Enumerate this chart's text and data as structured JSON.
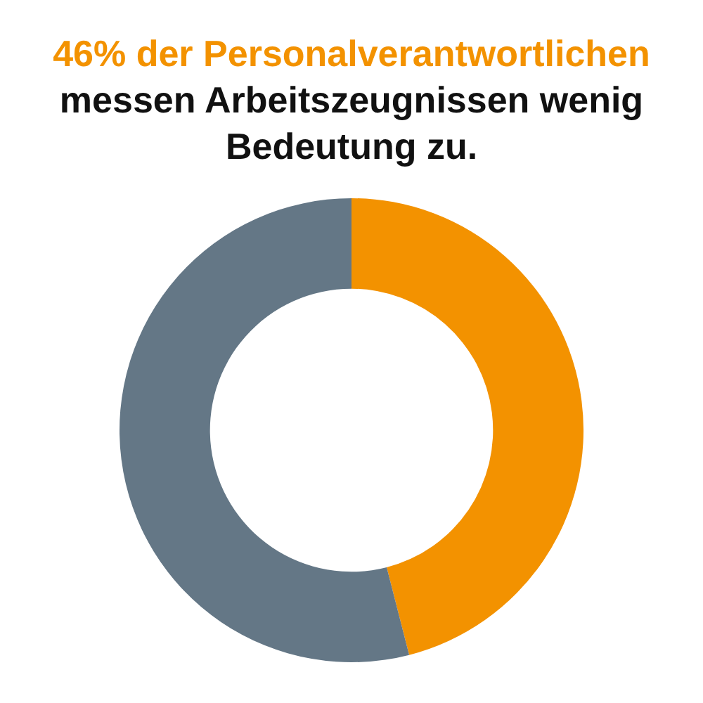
{
  "chart_data": {
    "type": "donut",
    "title": "46% der Personalverantwortlichen",
    "subtitle": "messen Arbeitszeugnissen wenig Bedeutung zu.",
    "categories": [
      null,
      null
    ],
    "values": [
      46,
      54
    ],
    "colors": [
      "#f39200",
      "#647786"
    ],
    "legend": false
  }
}
